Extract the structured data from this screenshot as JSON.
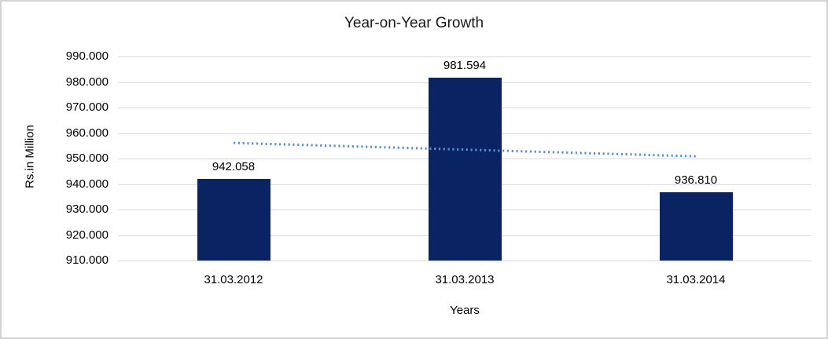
{
  "chart_data": {
    "type": "bar",
    "title": "Year-on-Year Growth",
    "xlabel": "Years",
    "ylabel": "Rs.in Million",
    "categories": [
      "31.03.2012",
      "31.03.2013",
      "31.03.2014"
    ],
    "values": [
      942.058,
      981.594,
      936.81
    ],
    "value_labels": [
      "942.058",
      "981.594",
      "936.810"
    ],
    "ylim": [
      910,
      990
    ],
    "yticks": [
      {
        "value": 990,
        "label": "990.000"
      },
      {
        "value": 980,
        "label": "980.000"
      },
      {
        "value": 970,
        "label": "970.000"
      },
      {
        "value": 960,
        "label": "960.000"
      },
      {
        "value": 950,
        "label": "950.000"
      },
      {
        "value": 940,
        "label": "940.000"
      },
      {
        "value": 930,
        "label": "930.000"
      },
      {
        "value": 920,
        "label": "920.000"
      },
      {
        "value": 910,
        "label": "910.000"
      }
    ],
    "grid": true,
    "legend": false,
    "bar_color": "#0A2463",
    "gridline_color": "#D9D9D9",
    "trendline": {
      "type": "linear",
      "style": "dotted",
      "color": "#5B8FD0",
      "start_value": 956.111,
      "end_value": 950.863
    }
  },
  "frame": {
    "background": "#FFFFFF",
    "border_color": "#D4D4D4"
  }
}
